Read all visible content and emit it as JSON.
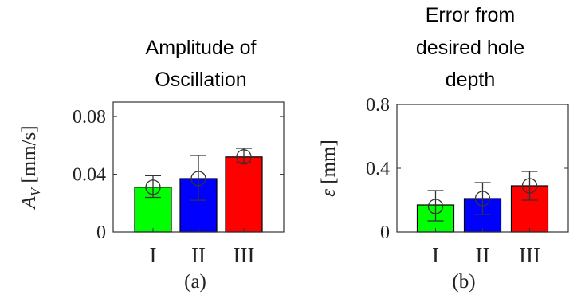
{
  "chart_data": [
    {
      "type": "bar",
      "panel": "(a)",
      "title_lines": [
        "Amplitude of",
        "Oscillation"
      ],
      "ylabel_symbol": "A",
      "ylabel_subscript": "V",
      "ylabel_unit": "[mm/s]",
      "categories": [
        "I",
        "II",
        "III"
      ],
      "values": [
        0.031,
        0.037,
        0.052
      ],
      "means": [
        0.031,
        0.037,
        0.052
      ],
      "err_low": [
        0.024,
        0.022,
        0.048
      ],
      "err_high": [
        0.039,
        0.053,
        0.058
      ],
      "ylim": [
        0,
        0.09
      ],
      "yticks": [
        0,
        0.04,
        0.08
      ],
      "ytick_labels": [
        "0",
        "0.04",
        "0.08"
      ],
      "colors": [
        "#00ff00",
        "#0000ff",
        "#ff0000"
      ],
      "caption": "(a)"
    },
    {
      "type": "bar",
      "panel": "(b)",
      "title_lines": [
        "Error from",
        "desired hole",
        "depth"
      ],
      "ylabel_symbol": "ε",
      "ylabel_unit": "[mm]",
      "categories": [
        "I",
        "II",
        "III"
      ],
      "values": [
        0.17,
        0.21,
        0.29
      ],
      "means": [
        0.16,
        0.21,
        0.29
      ],
      "err_low": [
        0.07,
        0.11,
        0.2
      ],
      "err_high": [
        0.26,
        0.31,
        0.38
      ],
      "ylim": [
        0,
        0.8
      ],
      "yticks": [
        0,
        0.4,
        0.8
      ],
      "ytick_labels": [
        "0",
        "0.4",
        "0.8"
      ],
      "colors": [
        "#00ff00",
        "#0000ff",
        "#ff0000"
      ],
      "caption": "(b)"
    }
  ]
}
